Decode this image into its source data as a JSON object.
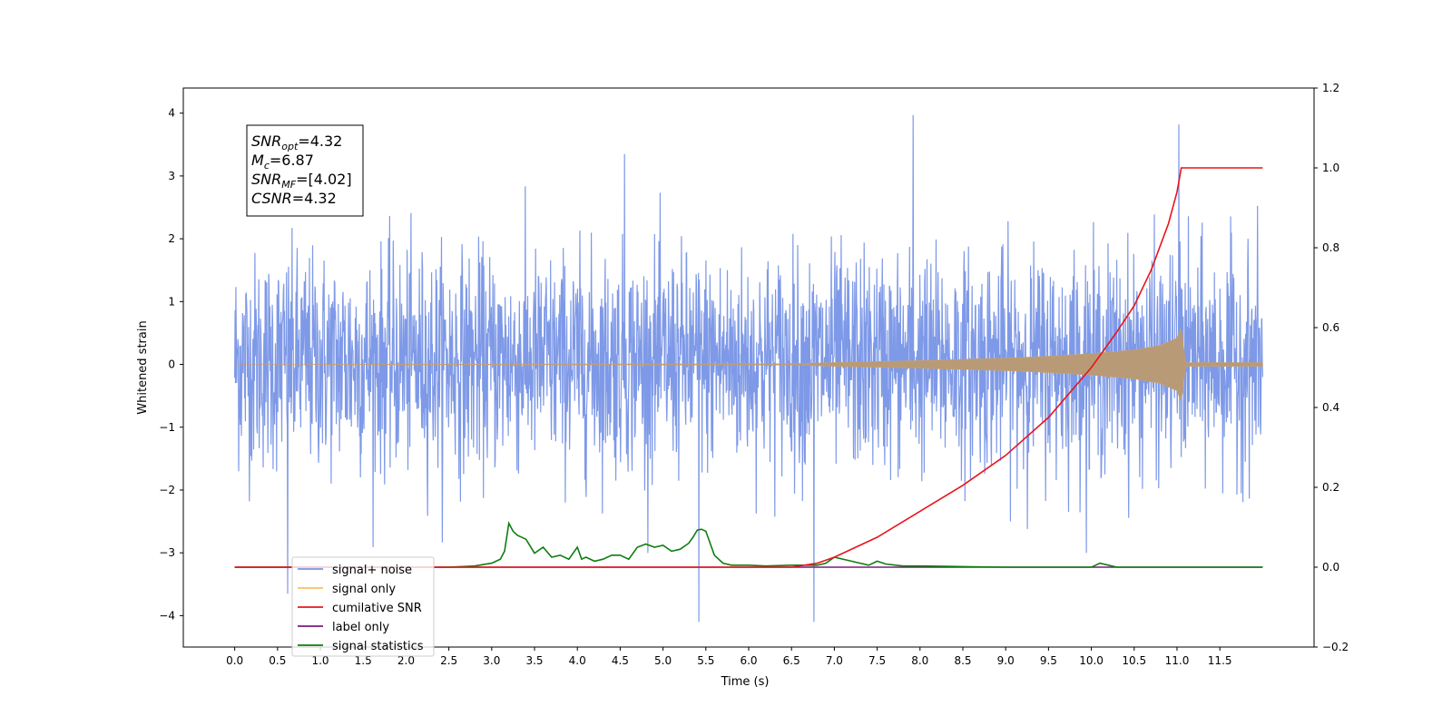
{
  "chart_data": {
    "type": "line",
    "xlabel": "Time (s)",
    "ylabel": "Whitened strain",
    "xlim": [
      -0.6,
      12.6
    ],
    "ylim": [
      -4.5,
      4.4
    ],
    "y2lim": [
      -0.2,
      1.2
    ],
    "x_ticks": [
      "0.0",
      "0.5",
      "1.0",
      "1.5",
      "2.0",
      "2.5",
      "3.0",
      "3.5",
      "4.0",
      "4.5",
      "5.0",
      "5.5",
      "6.0",
      "6.5",
      "7.0",
      "7.5",
      "8.0",
      "8.5",
      "9.0",
      "9.5",
      "10.0",
      "10.5",
      "11.0",
      "11.5"
    ],
    "y_ticks": [
      "4",
      "3",
      "2",
      "1",
      "0",
      "−1",
      "−2",
      "−3",
      "−4"
    ],
    "y2_ticks": [
      "1.2",
      "1.0",
      "0.8",
      "0.6",
      "0.4",
      "0.2",
      "0.0",
      "−0.2"
    ],
    "legend_position": "lower-left",
    "annotation": [
      {
        "base": "SNR",
        "sub": "opt",
        "rest": "=4.32"
      },
      {
        "base": "M",
        "sub": "c",
        "rest": "=6.87"
      },
      {
        "base": "SNR",
        "sub": "MF",
        "rest": "=[4.02]"
      },
      {
        "base": "CSNR",
        "sub": "",
        "rest": "=4.32"
      }
    ],
    "series": [
      {
        "name": "signal+ noise",
        "color": "#7793e6",
        "axis": "left",
        "kind": "gaussian-noise",
        "x_range": [
          0.0,
          12.0
        ],
        "envelope_typical": [
          -2.1,
          2.2
        ],
        "extremes": [
          {
            "x": 0.62,
            "y": -3.65
          },
          {
            "x": 4.55,
            "y": 3.35
          },
          {
            "x": 5.42,
            "y": -4.1
          },
          {
            "x": 6.76,
            "y": -4.1
          },
          {
            "x": 7.92,
            "y": 3.97
          },
          {
            "x": 11.02,
            "y": 3.82
          }
        ]
      },
      {
        "name": "signal only",
        "color": "#f5c06a",
        "axis": "left",
        "kind": "chirp",
        "x": [
          0.0,
          6.5,
          7.0,
          8.0,
          9.0,
          9.5,
          10.0,
          10.5,
          10.8,
          11.0,
          11.05,
          11.1,
          12.0
        ],
        "amplitude": [
          0.0,
          0.01,
          0.03,
          0.06,
          0.1,
          0.13,
          0.17,
          0.23,
          0.3,
          0.42,
          0.6,
          0.03,
          0.03
        ]
      },
      {
        "name": "cumilative SNR",
        "color": "#e8141c",
        "axis": "right",
        "x": [
          0.0,
          6.5,
          6.8,
          7.0,
          7.5,
          8.0,
          8.5,
          9.0,
          9.5,
          10.0,
          10.3,
          10.5,
          10.7,
          10.9,
          11.0,
          11.05,
          11.5,
          12.0
        ],
        "y": [
          0.0,
          0.0,
          0.01,
          0.025,
          0.075,
          0.14,
          0.205,
          0.28,
          0.375,
          0.5,
          0.59,
          0.655,
          0.745,
          0.86,
          0.94,
          1.0,
          1.0,
          1.0
        ]
      },
      {
        "name": "label only",
        "color": "#7c1a7c",
        "axis": "right",
        "x": [
          0.0,
          12.0
        ],
        "y": [
          0.0,
          0.0
        ]
      },
      {
        "name": "signal statistics",
        "color": "#0f7d0f",
        "axis": "right",
        "x": [
          0.0,
          2.5,
          2.8,
          3.0,
          3.1,
          3.15,
          3.2,
          3.25,
          3.3,
          3.4,
          3.5,
          3.6,
          3.7,
          3.8,
          3.9,
          4.0,
          4.05,
          4.1,
          4.2,
          4.3,
          4.4,
          4.5,
          4.6,
          4.7,
          4.8,
          4.9,
          5.0,
          5.1,
          5.2,
          5.3,
          5.35,
          5.4,
          5.45,
          5.5,
          5.6,
          5.7,
          5.8,
          6.0,
          6.2,
          6.5,
          6.8,
          6.9,
          7.0,
          7.2,
          7.4,
          7.5,
          7.6,
          7.8,
          8.0,
          8.3,
          8.6,
          9.0,
          9.5,
          10.0,
          10.05,
          10.1,
          10.2,
          10.3,
          11.0,
          12.0
        ],
        "y": [
          0.0,
          0.0,
          0.003,
          0.01,
          0.02,
          0.04,
          0.11,
          0.09,
          0.08,
          0.07,
          0.035,
          0.05,
          0.025,
          0.03,
          0.02,
          0.05,
          0.02,
          0.025,
          0.015,
          0.02,
          0.03,
          0.03,
          0.02,
          0.05,
          0.058,
          0.05,
          0.055,
          0.04,
          0.045,
          0.06,
          0.075,
          0.093,
          0.095,
          0.09,
          0.03,
          0.01,
          0.005,
          0.005,
          0.003,
          0.005,
          0.005,
          0.01,
          0.025,
          0.015,
          0.005,
          0.015,
          0.008,
          0.003,
          0.003,
          0.002,
          0.001,
          0.0,
          0.0,
          0.0,
          0.005,
          0.01,
          0.005,
          0.0,
          0.0,
          0.0
        ]
      }
    ]
  }
}
